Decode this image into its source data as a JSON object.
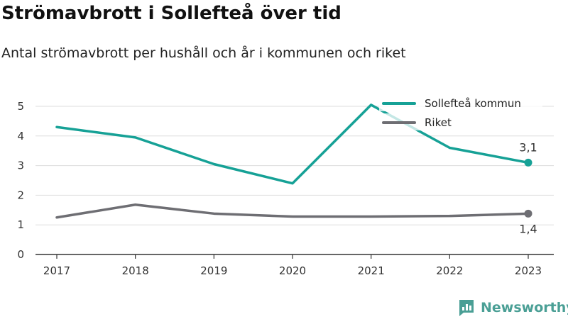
{
  "title": "Strömavbrott i Sollefteå över tid",
  "subtitle": "Antal strömavbrott per hushåll och år i kommunen och riket",
  "brand": {
    "name": "Newsworthy",
    "icon": "newsworthy-logo-icon"
  },
  "colors": {
    "kommun": "#16a196",
    "riket": "#6e6e73",
    "grid": "#dddddd"
  },
  "chart_data": {
    "type": "line",
    "categories": [
      "2017",
      "2018",
      "2019",
      "2020",
      "2021",
      "2022",
      "2023"
    ],
    "yticks": [
      "0",
      "1",
      "2",
      "3",
      "4",
      "5"
    ],
    "ylim": [
      0,
      5
    ],
    "grid": true,
    "legend_position": "top-right",
    "series": [
      {
        "name": "Sollefteå kommun",
        "values": [
          4.3,
          3.95,
          3.05,
          2.4,
          5.05,
          3.6,
          3.1
        ],
        "end_label": "3,1"
      },
      {
        "name": "Riket",
        "values": [
          1.25,
          1.68,
          1.38,
          1.28,
          1.28,
          1.3,
          1.38
        ],
        "end_label": "1,4"
      }
    ]
  }
}
